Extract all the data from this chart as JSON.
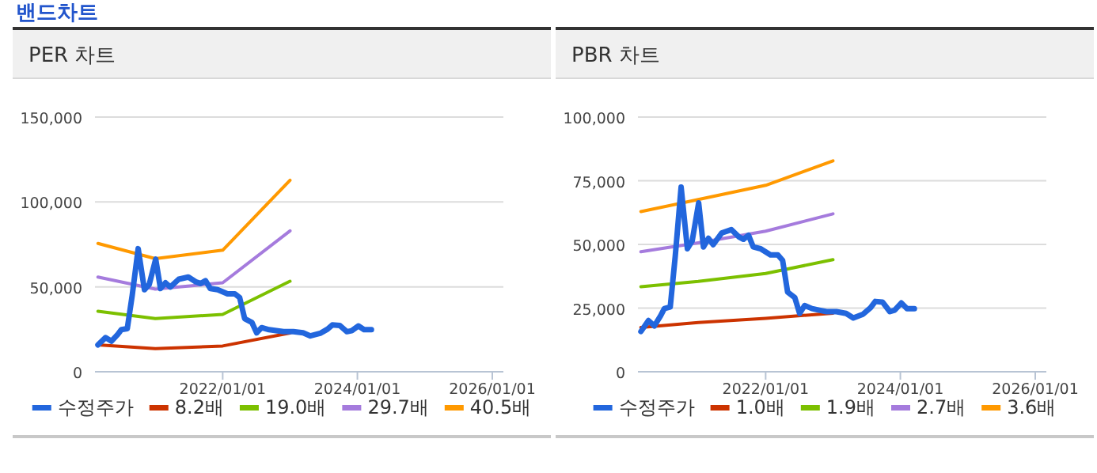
{
  "chart_data": [
    {
      "type": "line",
      "title": "PER 차트",
      "annotations": [
        "밴드차트"
      ],
      "xlim": [
        "2020-02-09",
        "2026-03-02"
      ],
      "xticks": [
        {
          "value": "2022-01-01",
          "label": "2022/01/01"
        },
        {
          "value": "2024-01-01",
          "label": "2024/01/01"
        },
        {
          "value": "2026-01-01",
          "label": "2026/01/01"
        }
      ],
      "ylim": [
        0,
        150000
      ],
      "yticks": [
        0,
        {
          "value": 50000,
          "label": "50,000"
        },
        {
          "value": 100000,
          "label": "100,000"
        },
        {
          "value": 150000,
          "label": "150,000"
        }
      ],
      "grid": "y",
      "legend": "bottom",
      "series": [
        {
          "name": "수정주가",
          "color": "#2266dd",
          "x": [
            "2020-02-25",
            "2020-04-06",
            "2020-05-08",
            "2020-06-11",
            "2020-07-01",
            "2020-08-02",
            "2020-08-29",
            "2020-09-30",
            "2020-11-03",
            "2020-11-29",
            "2021-01-03",
            "2021-01-29",
            "2021-02-25",
            "2021-03-23",
            "2021-05-08",
            "2021-06-29",
            "2021-08-08",
            "2021-09-03",
            "2021-09-30",
            "2021-10-26",
            "2021-12-05",
            "2022-01-27",
            "2022-03-08",
            "2022-04-03",
            "2022-04-30",
            "2022-06-08",
            "2022-07-04",
            "2022-07-31",
            "2022-09-09",
            "2022-10-18",
            "2022-11-27",
            "2023-01-19",
            "2023-03-13",
            "2023-04-21",
            "2023-06-13",
            "2023-07-23",
            "2023-08-18",
            "2023-09-27",
            "2023-11-05",
            "2023-12-01",
            "2024-01-06",
            "2024-02-06",
            "2024-03-17"
          ],
          "values": [
            15800,
            20100,
            18000,
            22000,
            24800,
            25400,
            45200,
            72500,
            48300,
            51400,
            66300,
            49000,
            52400,
            49900,
            54500,
            55800,
            53000,
            52000,
            53600,
            49000,
            48300,
            45900,
            45900,
            43700,
            31300,
            29100,
            22900,
            26000,
            24800,
            24200,
            23600,
            23600,
            22900,
            21100,
            22600,
            25100,
            27600,
            27300,
            23600,
            24200,
            27000,
            24800,
            24800
          ]
        },
        {
          "name": "8.2배",
          "color": "#cc3300",
          "x": [
            "2020-02-25",
            "2021-01-01",
            "2022-01-01",
            "2023-01-01"
          ],
          "values": [
            15800,
            13600,
            15200,
            22800
          ]
        },
        {
          "name": "19.0배",
          "color": "#7cc000",
          "x": [
            "2020-02-25",
            "2021-01-01",
            "2022-01-01",
            "2023-01-01"
          ],
          "values": [
            35600,
            31300,
            33800,
            53300
          ]
        },
        {
          "name": "29.7배",
          "color": "#a57bdd",
          "x": [
            "2020-02-25",
            "2021-01-01",
            "2022-01-01",
            "2023-01-01"
          ],
          "values": [
            55800,
            48700,
            52400,
            83000
          ]
        },
        {
          "name": "40.5배",
          "color": "#ff9900",
          "x": [
            "2020-02-25",
            "2021-01-01",
            "2022-01-01",
            "2023-01-01"
          ],
          "values": [
            75600,
            66600,
            71600,
            112800
          ]
        }
      ]
    },
    {
      "type": "line",
      "title": "PBR 차트",
      "xlim": [
        "2020-02-09",
        "2026-03-02"
      ],
      "xticks": [
        {
          "value": "2022-01-01",
          "label": "2022/01/01"
        },
        {
          "value": "2024-01-01",
          "label": "2024/01/01"
        },
        {
          "value": "2026-01-01",
          "label": "2026/01/01"
        }
      ],
      "ylim": [
        0,
        100000
      ],
      "yticks": [
        0,
        {
          "value": 25000,
          "label": "25,000"
        },
        {
          "value": 50000,
          "label": "50,000"
        },
        {
          "value": 75000,
          "label": "75,000"
        },
        {
          "value": 100000,
          "label": "100,000"
        }
      ],
      "grid": "y",
      "legend": "bottom",
      "series": [
        {
          "name": "수정주가",
          "color": "#2266dd",
          "x": [
            "2020-02-25",
            "2020-04-06",
            "2020-05-08",
            "2020-06-11",
            "2020-07-01",
            "2020-08-02",
            "2020-08-29",
            "2020-09-30",
            "2020-11-03",
            "2020-11-29",
            "2021-01-03",
            "2021-01-29",
            "2021-02-25",
            "2021-03-23",
            "2021-05-08",
            "2021-06-29",
            "2021-08-08",
            "2021-09-03",
            "2021-09-30",
            "2021-10-26",
            "2021-12-05",
            "2022-01-27",
            "2022-03-08",
            "2022-04-03",
            "2022-04-30",
            "2022-06-08",
            "2022-07-04",
            "2022-07-31",
            "2022-09-09",
            "2022-10-18",
            "2022-11-27",
            "2023-01-19",
            "2023-03-13",
            "2023-04-21",
            "2023-06-13",
            "2023-07-23",
            "2023-08-18",
            "2023-09-27",
            "2023-11-05",
            "2023-12-01",
            "2024-01-06",
            "2024-02-06",
            "2024-03-17"
          ],
          "values": [
            15800,
            20100,
            18000,
            22000,
            24800,
            25400,
            45200,
            72500,
            48300,
            51400,
            66300,
            49000,
            52400,
            49900,
            54500,
            55800,
            53000,
            52000,
            53600,
            49000,
            48300,
            45900,
            45900,
            43700,
            31300,
            29100,
            22900,
            26000,
            24800,
            24200,
            23600,
            23600,
            22900,
            21100,
            22600,
            25100,
            27600,
            27300,
            23600,
            24200,
            27000,
            24800,
            24800
          ]
        },
        {
          "name": "1.0배",
          "color": "#cc3300",
          "x": [
            "2020-02-25",
            "2021-01-01",
            "2022-01-01",
            "2023-01-01"
          ],
          "values": [
            17400,
            19300,
            21000,
            23000
          ]
        },
        {
          "name": "1.9배",
          "color": "#7cc000",
          "x": [
            "2020-02-25",
            "2021-01-01",
            "2022-01-01",
            "2023-01-01"
          ],
          "values": [
            33400,
            35500,
            38600,
            44000
          ]
        },
        {
          "name": "2.7배",
          "color": "#a57bdd",
          "x": [
            "2020-02-25",
            "2021-01-01",
            "2022-01-01",
            "2023-01-01"
          ],
          "values": [
            47100,
            50600,
            55200,
            62000
          ]
        },
        {
          "name": "3.6배",
          "color": "#ff9900",
          "x": [
            "2020-02-25",
            "2021-01-01",
            "2022-01-01",
            "2023-01-01"
          ],
          "values": [
            62900,
            67600,
            73200,
            82800
          ]
        }
      ]
    }
  ]
}
